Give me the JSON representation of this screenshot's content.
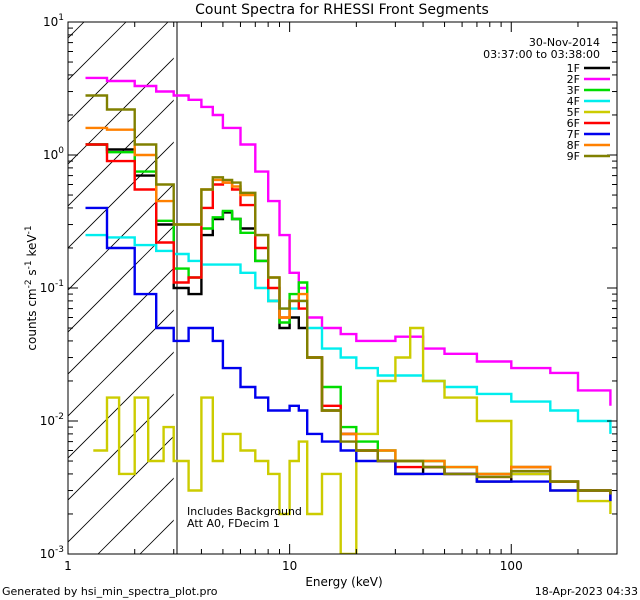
{
  "chart_data": {
    "type": "line",
    "title": "Count Spectra for RHESSI Front Segments",
    "xlabel": "Energy (keV)",
    "ylabel": "counts cm-2 s-1 keV-1",
    "xscale": "log",
    "yscale": "log",
    "xlim": [
      1,
      300
    ],
    "ylim": [
      0.001,
      10
    ],
    "x_tick_labels": [
      "1",
      "10",
      "100"
    ],
    "y_tick_labels": [
      "10^-3",
      "10^-2",
      "10^-1",
      "10^0",
      "10^1"
    ],
    "legend_position": "top-right",
    "date": "30-Nov-2014",
    "time_range": "03:37:00 to 03:38:00",
    "annotations": [
      "Includes Background",
      "Att A0, FDecim 1"
    ],
    "shaded_region_x": [
      1,
      3
    ],
    "series": [
      {
        "name": "1F",
        "color": "#000000",
        "x": [
          1.2,
          1.5,
          2,
          2.5,
          3,
          3.5,
          4,
          4.5,
          5,
          5.5,
          6,
          7,
          8,
          9,
          10,
          11,
          12,
          14,
          17,
          20,
          25,
          30,
          40,
          50,
          70,
          100,
          150,
          200,
          280
        ],
        "y": [
          1.2,
          1.1,
          0.7,
          0.3,
          0.1,
          0.09,
          0.25,
          0.33,
          0.37,
          0.33,
          0.28,
          0.16,
          0.08,
          0.05,
          0.06,
          0.05,
          0.03,
          0.012,
          0.008,
          0.006,
          0.005,
          0.004,
          0.0045,
          0.004,
          0.0035,
          0.004,
          0.0035,
          0.003,
          0.0025
        ]
      },
      {
        "name": "2F",
        "color": "#ff00ff",
        "x": [
          1.2,
          1.5,
          2,
          2.5,
          3,
          3.5,
          4,
          4.5,
          5,
          6,
          7,
          8,
          9,
          10,
          11,
          12,
          14,
          17,
          20,
          25,
          30,
          40,
          50,
          70,
          100,
          150,
          200,
          280
        ],
        "y": [
          3.8,
          3.6,
          3.3,
          3.0,
          2.8,
          2.6,
          2.3,
          2.0,
          1.6,
          1.2,
          0.75,
          0.45,
          0.25,
          0.13,
          0.1,
          0.06,
          0.05,
          0.045,
          0.04,
          0.04,
          0.043,
          0.035,
          0.032,
          0.028,
          0.025,
          0.023,
          0.017,
          0.013
        ]
      },
      {
        "name": "3F",
        "color": "#00dd00",
        "x": [
          1.2,
          1.5,
          2,
          2.5,
          3,
          3.5,
          4,
          4.5,
          5,
          5.5,
          6,
          7,
          8,
          9,
          10,
          11,
          12,
          14,
          17,
          20,
          25,
          30,
          40,
          50,
          70,
          100,
          150,
          200,
          280
        ],
        "y": [
          1.2,
          1.05,
          0.75,
          0.32,
          0.14,
          0.12,
          0.28,
          0.34,
          0.38,
          0.33,
          0.26,
          0.16,
          0.08,
          0.055,
          0.09,
          0.11,
          0.03,
          0.018,
          0.009,
          0.007,
          0.006,
          0.005,
          0.005,
          0.0045,
          0.004,
          0.0045,
          0.0035,
          0.003,
          0.0028
        ]
      },
      {
        "name": "4F",
        "color": "#00eeee",
        "x": [
          1.2,
          1.5,
          2,
          2.5,
          3,
          3.5,
          4,
          4.5,
          5,
          6,
          7,
          8,
          9,
          10,
          11,
          12,
          14,
          17,
          20,
          25,
          30,
          40,
          50,
          70,
          100,
          150,
          200,
          280
        ],
        "y": [
          0.25,
          0.24,
          0.21,
          0.19,
          0.18,
          0.16,
          0.15,
          0.15,
          0.15,
          0.13,
          0.1,
          0.08,
          0.07,
          0.07,
          0.08,
          0.05,
          0.035,
          0.03,
          0.025,
          0.022,
          0.022,
          0.02,
          0.018,
          0.016,
          0.014,
          0.012,
          0.01,
          0.008
        ]
      },
      {
        "name": "5F",
        "color": "#cccc00",
        "x": [
          1.3,
          1.5,
          1.7,
          2,
          2.3,
          2.7,
          3,
          3.5,
          4,
          4.5,
          5,
          6,
          7,
          8,
          9,
          10,
          11,
          12,
          14,
          17,
          20,
          25,
          30,
          35,
          40,
          50,
          70,
          100,
          150,
          200,
          280
        ],
        "y": [
          0.006,
          0.015,
          0.004,
          0.015,
          0.005,
          0.009,
          0.005,
          0.003,
          0.015,
          0.005,
          0.008,
          0.006,
          0.005,
          0.004,
          0.002,
          0.005,
          0.007,
          0.002,
          0.004,
          0.001,
          0.008,
          0.02,
          0.03,
          0.05,
          0.02,
          0.015,
          0.01,
          0.004,
          0.003,
          0.0025,
          0.002
        ]
      },
      {
        "name": "6F",
        "color": "#ff0000",
        "x": [
          1.2,
          1.5,
          2,
          2.5,
          3,
          3.5,
          4,
          4.5,
          5,
          5.5,
          6,
          7,
          8,
          9,
          10,
          11,
          12,
          14,
          17,
          20,
          25,
          30,
          40,
          50,
          70,
          100,
          150,
          200,
          280
        ],
        "y": [
          1.2,
          0.9,
          0.55,
          0.22,
          0.11,
          0.12,
          0.4,
          0.6,
          0.62,
          0.55,
          0.42,
          0.2,
          0.1,
          0.06,
          0.08,
          0.07,
          0.03,
          0.013,
          0.008,
          0.006,
          0.005,
          0.0045,
          0.0045,
          0.004,
          0.0038,
          0.0045,
          0.0035,
          0.003,
          0.0028
        ]
      },
      {
        "name": "7F",
        "color": "#0000ee",
        "x": [
          1.2,
          1.5,
          2,
          2.5,
          3,
          3.5,
          4,
          4.5,
          5,
          6,
          7,
          8,
          9,
          10,
          11,
          12,
          14,
          17,
          20,
          25,
          30,
          40,
          50,
          70,
          100,
          150,
          200,
          280
        ],
        "y": [
          0.4,
          0.2,
          0.09,
          0.05,
          0.04,
          0.05,
          0.05,
          0.04,
          0.025,
          0.018,
          0.015,
          0.012,
          0.012,
          0.013,
          0.012,
          0.008,
          0.007,
          0.006,
          0.005,
          0.005,
          0.004,
          0.004,
          0.004,
          0.0035,
          0.0035,
          0.003,
          0.003,
          0.0025
        ]
      },
      {
        "name": "8F",
        "color": "#ff8000",
        "x": [
          1.2,
          1.5,
          2,
          2.5,
          3,
          3.5,
          4,
          4.5,
          5,
          5.5,
          6,
          7,
          8,
          9,
          10,
          11,
          12,
          14,
          17,
          20,
          25,
          30,
          40,
          50,
          70,
          100,
          150,
          200,
          280
        ],
        "y": [
          1.6,
          1.55,
          1.0,
          0.45,
          0.3,
          0.3,
          0.55,
          0.65,
          0.62,
          0.58,
          0.5,
          0.25,
          0.12,
          0.06,
          0.08,
          0.09,
          0.03,
          0.012,
          0.008,
          0.006,
          0.006,
          0.005,
          0.005,
          0.0045,
          0.004,
          0.0045,
          0.0035,
          0.003,
          0.0028
        ]
      },
      {
        "name": "9F",
        "color": "#808000",
        "x": [
          1.2,
          1.5,
          2,
          2.5,
          3,
          3.5,
          4,
          4.5,
          5,
          5.5,
          6,
          7,
          8,
          9,
          10,
          11,
          12,
          14,
          17,
          20,
          25,
          30,
          40,
          50,
          70,
          100,
          150,
          200,
          280
        ],
        "y": [
          2.8,
          2.2,
          1.2,
          0.6,
          0.3,
          0.3,
          0.55,
          0.68,
          0.65,
          0.62,
          0.52,
          0.25,
          0.12,
          0.07,
          0.08,
          0.08,
          0.03,
          0.012,
          0.007,
          0.006,
          0.005,
          0.005,
          0.0045,
          0.004,
          0.0038,
          0.0042,
          0.0035,
          0.003,
          0.0028
        ]
      }
    ]
  },
  "footer": {
    "generated_by": "Generated by hsi_min_spectra_plot.pro",
    "timestamp": "18-Apr-2023 04:33"
  }
}
